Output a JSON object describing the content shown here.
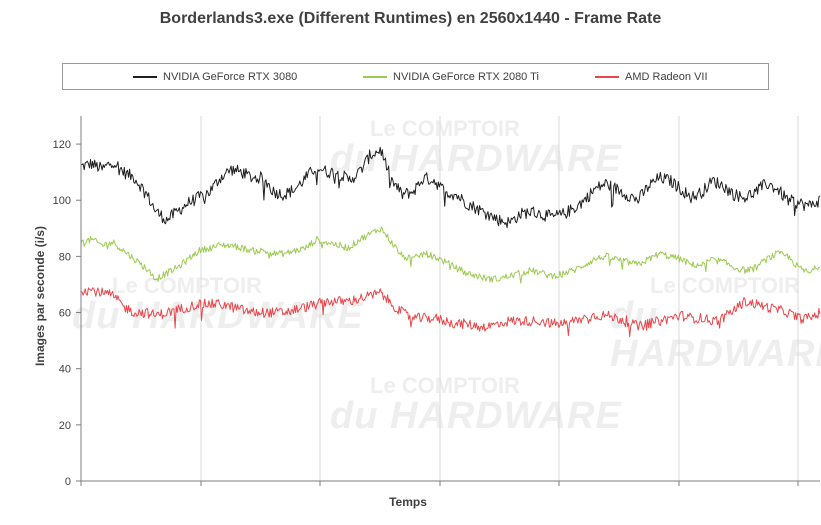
{
  "chart_data": {
    "type": "line",
    "title": "Borderlands3.exe (Different Runtimes) en 2560x1440 - Frame Rate",
    "xlabel": "Temps",
    "ylabel": "Images par seconde (i/s)",
    "ylim": [
      0,
      130
    ],
    "yticks": [
      0,
      20,
      40,
      60,
      80,
      100,
      120
    ],
    "grid": true,
    "legend_position": "top",
    "series": [
      {
        "name": "NVIDIA GeForce RTX 3080",
        "color": "#1f1f1f",
        "noise": 2.2,
        "values": [
          112,
          113,
          111,
          114,
          110,
          108,
          103,
          96,
          93,
          96,
          99,
          101,
          103,
          108,
          111,
          110,
          108,
          108,
          103,
          102,
          104,
          108,
          112,
          110,
          110,
          107,
          110,
          116,
          118,
          107,
          102,
          103,
          108,
          107,
          103,
          102,
          99,
          97,
          95,
          93,
          92,
          95,
          96,
          95,
          94,
          95,
          97,
          100,
          104,
          106,
          104,
          102,
          100,
          105,
          108,
          107,
          104,
          101,
          103,
          107,
          105,
          102,
          101,
          103,
          106,
          104,
          100,
          99,
          98,
          100
        ]
      },
      {
        "name": "NVIDIA GeForce RTX 2080 Ti",
        "color": "#9ccb52",
        "noise": 1.2,
        "values": [
          85,
          86,
          84,
          85,
          82,
          79,
          76,
          72,
          74,
          76,
          79,
          82,
          83,
          84,
          84,
          83,
          82,
          82,
          81,
          81,
          82,
          83,
          86,
          85,
          84,
          83,
          86,
          88,
          90,
          85,
          80,
          79,
          81,
          80,
          78,
          76,
          74,
          73,
          72,
          72,
          73,
          74,
          75,
          74,
          73,
          74,
          75,
          77,
          79,
          80,
          79,
          78,
          77,
          79,
          81,
          80,
          79,
          77,
          77,
          79,
          78,
          76,
          75,
          76,
          79,
          81,
          80,
          76,
          74,
          77
        ]
      },
      {
        "name": "AMD Radeon VII",
        "color": "#e8474b",
        "noise": 1.8,
        "values": [
          68,
          68,
          67,
          66,
          62,
          60,
          60,
          59,
          60,
          61,
          62,
          63,
          63,
          63,
          62,
          61,
          60,
          60,
          60,
          60,
          61,
          62,
          63,
          64,
          64,
          64,
          65,
          66,
          67,
          63,
          60,
          58,
          58,
          58,
          57,
          56,
          56,
          55,
          55,
          56,
          57,
          57,
          57,
          57,
          56,
          56,
          57,
          58,
          59,
          59,
          58,
          57,
          55,
          56,
          57,
          58,
          59,
          58,
          58,
          57,
          58,
          61,
          64,
          63,
          62,
          61,
          60,
          58,
          58,
          60
        ]
      }
    ]
  },
  "watermarks": [
    {
      "top": "Le COMPTOIR",
      "big": "du HARDWARE"
    },
    {
      "top": "Le COMPTOIR",
      "big": "du HARDWARE"
    },
    {
      "top": "Le COMPTOIR",
      "big": "du HARDWARE"
    },
    {
      "top": "Le COMPTOIR",
      "big": "du HARDWARE"
    }
  ]
}
